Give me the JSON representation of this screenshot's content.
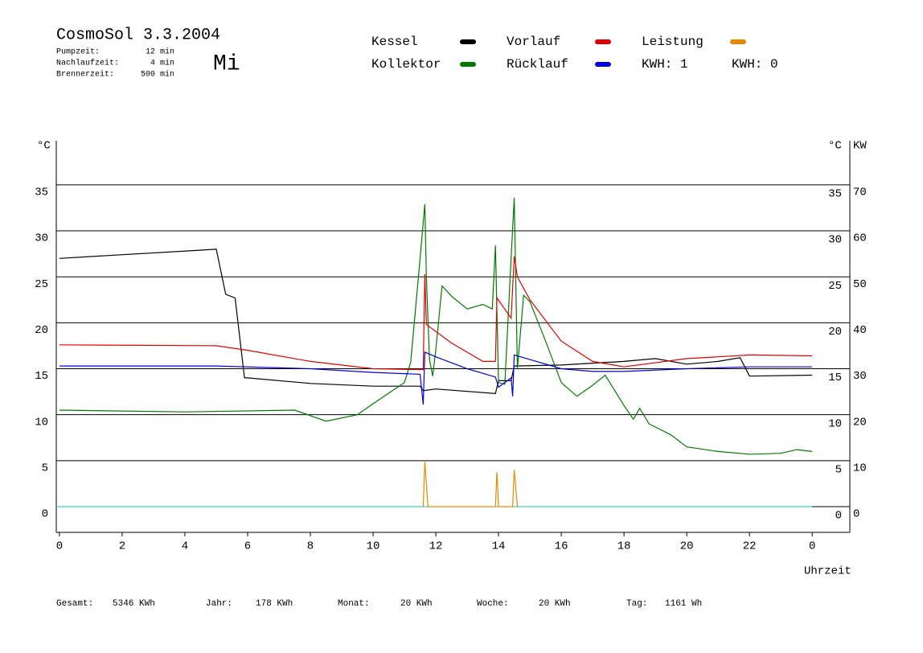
{
  "chart_data": {
    "type": "line",
    "title": "CosmoSol 3.3.2004",
    "weekday": "Mi",
    "params": [
      {
        "label": "Pumpzeit:",
        "value": "12 min"
      },
      {
        "label": "Nachlaufzeit:",
        "value": "4 min"
      },
      {
        "label": "Brennerzeit:",
        "value": "500 min"
      }
    ],
    "kwh_labels": [
      {
        "text": "KWH: 1",
        "color": "#e88a00"
      },
      {
        "text": "KWH: 0",
        "color": "#800080"
      }
    ],
    "y_unit": "°C",
    "y2_unit": "KW",
    "x_label": "Uhrzeit",
    "xlim": [
      -0.1,
      25.2
    ],
    "xticks": [
      0,
      2,
      4,
      6,
      8,
      10,
      12,
      14,
      16,
      18,
      20,
      22,
      {
        "value": 24,
        "label": "0"
      }
    ],
    "ylim": [
      -2.8,
      39.8
    ],
    "yticks": [
      0,
      5,
      10,
      15,
      20,
      25,
      30,
      35
    ],
    "y2lim": [
      -5.6,
      79.6
    ],
    "y2ticks": [
      0,
      10,
      20,
      30,
      40,
      50,
      60,
      70
    ],
    "grid": true,
    "series": [
      {
        "name": "Kessel",
        "color": "#000000",
        "x": [
          0,
          5,
          5.3,
          5.6,
          5.9,
          6,
          8,
          10,
          11.5,
          11.6,
          12,
          13.9,
          14,
          14.4,
          14.5,
          16,
          18,
          19,
          20,
          21,
          21.7,
          22,
          24
        ],
        "values": [
          27.0,
          28.0,
          23.1,
          22.7,
          14.0,
          14.0,
          13.4,
          13.1,
          13.1,
          12.6,
          12.8,
          12.3,
          13.7,
          13.7,
          15.3,
          15.4,
          15.8,
          16.1,
          15.5,
          15.8,
          16.2,
          14.2,
          14.3
        ]
      },
      {
        "name": "Kollektor",
        "color": "#007a00",
        "x": [
          0,
          4,
          7.5,
          8.5,
          9.5,
          10,
          11,
          11.2,
          11.5,
          11.65,
          11.7,
          11.8,
          11.9,
          12,
          12.2,
          12.5,
          13,
          13.5,
          13.8,
          13.9,
          14,
          14.2,
          14.4,
          14.5,
          14.6,
          14.8,
          15,
          15.5,
          16,
          16.5,
          17,
          17.4,
          18,
          18.3,
          18.5,
          18.8,
          19.5,
          20,
          21,
          22,
          23,
          23.5,
          24
        ],
        "values": [
          10.5,
          10.3,
          10.5,
          9.3,
          10.0,
          11.2,
          13.5,
          15.7,
          27.0,
          32.9,
          25.0,
          16.0,
          14.2,
          17.0,
          24.0,
          22.9,
          21.5,
          22.0,
          21.5,
          28.4,
          13.5,
          13.3,
          27.0,
          33.6,
          15.0,
          23.0,
          22.3,
          18.0,
          13.5,
          12.0,
          13.2,
          14.3,
          11.0,
          9.5,
          10.7,
          9.0,
          7.8,
          6.5,
          6.0,
          5.7,
          5.8,
          6.2,
          6.0
        ]
      },
      {
        "name": "Vorlauf",
        "color": "#e00000",
        "x": [
          0,
          5,
          6,
          8,
          10,
          11.6,
          11.65,
          11.7,
          12.5,
          13.5,
          13.9,
          13.95,
          14.4,
          14.5,
          14.6,
          15,
          16,
          17,
          18,
          20,
          21,
          22,
          24
        ],
        "values": [
          17.6,
          17.5,
          17.0,
          15.8,
          15.0,
          14.9,
          25.3,
          19.8,
          17.8,
          15.8,
          15.8,
          22.7,
          20.5,
          27.2,
          25.0,
          22.5,
          18.0,
          15.8,
          15.2,
          16.1,
          16.3,
          16.5,
          16.4
        ]
      },
      {
        "name": "Rücklauf",
        "color": "#0000e0",
        "x": [
          0,
          5,
          8,
          10,
          11.5,
          11.6,
          11.65,
          12,
          13,
          13.9,
          14,
          14.4,
          14.45,
          14.5,
          15,
          16,
          17,
          18,
          20,
          22,
          24
        ],
        "values": [
          15.3,
          15.3,
          15.0,
          14.6,
          14.4,
          11.1,
          16.8,
          16.3,
          15.0,
          14.1,
          13.0,
          14.0,
          12.0,
          16.5,
          16.0,
          15.0,
          14.7,
          14.7,
          15.0,
          15.2,
          15.2
        ]
      },
      {
        "name": "Leistung",
        "color": "#e88a00",
        "axis": "y2",
        "x": [
          11.6,
          11.65,
          11.75,
          13.9,
          13.95,
          14.0,
          14.45,
          14.5,
          14.6
        ],
        "values": [
          0,
          9.8,
          0,
          0,
          7.5,
          0,
          0,
          8,
          0
        ]
      }
    ],
    "stats": [
      {
        "label": "Gesamt:",
        "value": "5346 KWh"
      },
      {
        "label": "Jahr:",
        "value": "178 KWh"
      },
      {
        "label": "Monat:",
        "value": "20 KWh"
      },
      {
        "label": "Woche:",
        "value": "20 KWh"
      },
      {
        "label": "Tag:",
        "value": "1161 Wh"
      }
    ]
  }
}
